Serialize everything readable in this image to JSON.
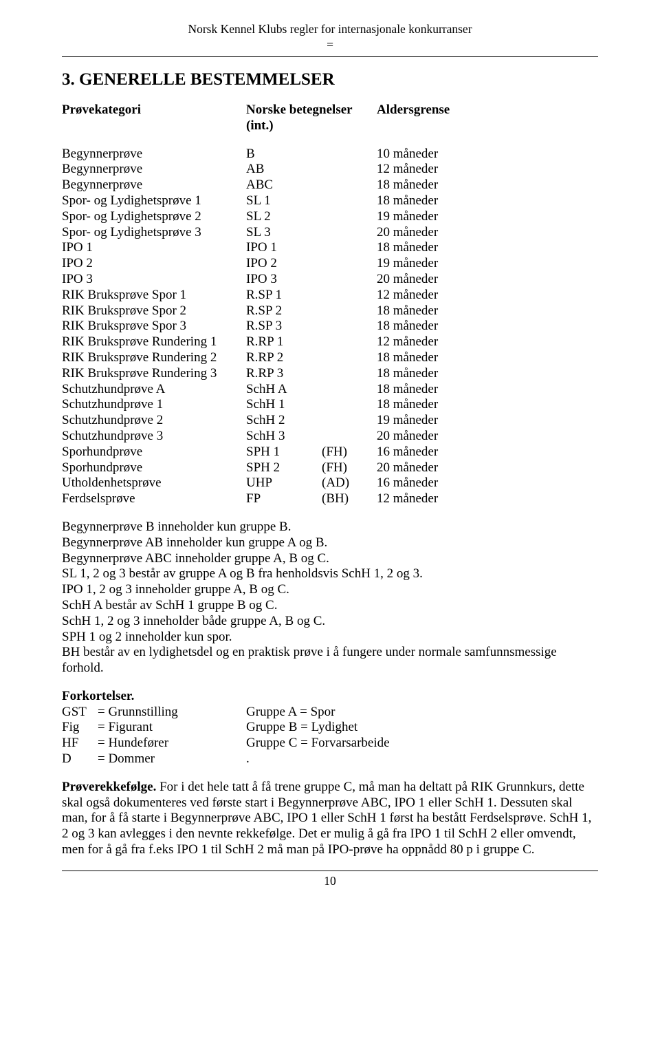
{
  "header": {
    "title": "Norsk Kennel Klubs regler for internasjonale konkurranser",
    "sub": "="
  },
  "section_heading": "3. GENERELLE BESTEMMELSER",
  "table": {
    "head": {
      "c1": "Prøvekategori",
      "c2": "Norske betegnelser (int.)",
      "c4": "Aldersgrense"
    },
    "rows": [
      {
        "c1": "Begynnerprøve",
        "c2": "B",
        "c3": "",
        "c4": "10 måneder"
      },
      {
        "c1": "Begynnerprøve",
        "c2": "AB",
        "c3": "",
        "c4": "12 måneder"
      },
      {
        "c1": "Begynnerprøve",
        "c2": "ABC",
        "c3": "",
        "c4": "18 måneder"
      },
      {
        "c1": "Spor- og Lydighetsprøve 1",
        "c2": "SL 1",
        "c3": "",
        "c4": "18 måneder"
      },
      {
        "c1": "Spor- og Lydighetsprøve 2",
        "c2": "SL 2",
        "c3": "",
        "c4": "19 måneder"
      },
      {
        "c1": "Spor- og Lydighetsprøve 3",
        "c2": "SL 3",
        "c3": "",
        "c4": "20 måneder"
      },
      {
        "c1": "IPO 1",
        "c2": "IPO 1",
        "c3": "",
        "c4": "18 måneder"
      },
      {
        "c1": "IPO 2",
        "c2": "IPO 2",
        "c3": "",
        "c4": "19 måneder"
      },
      {
        "c1": "IPO 3",
        "c2": "IPO 3",
        "c3": "",
        "c4": "20 måneder"
      },
      {
        "c1": "RIK Bruksprøve Spor 1",
        "c2": "R.SP 1",
        "c3": "",
        "c4": "12 måneder"
      },
      {
        "c1": "RIK Bruksprøve Spor 2",
        "c2": "R.SP 2",
        "c3": "",
        "c4": "18 måneder"
      },
      {
        "c1": "RIK Bruksprøve Spor 3",
        "c2": "R.SP 3",
        "c3": "",
        "c4": "18 måneder"
      },
      {
        "c1": "RIK Bruksprøve Rundering 1",
        "c2": "R.RP 1",
        "c3": "",
        "c4": "12 måneder"
      },
      {
        "c1": "RIK Bruksprøve Rundering 2",
        "c2": "R.RP 2",
        "c3": "",
        "c4": "18 måneder"
      },
      {
        "c1": "RIK Bruksprøve Rundering 3",
        "c2": "R.RP 3",
        "c3": "",
        "c4": "18 måneder"
      },
      {
        "c1": "Schutzhundprøve A",
        "c2": "SchH A",
        "c3": "",
        "c4": "18 måneder"
      },
      {
        "c1": "Schutzhundprøve 1",
        "c2": "SchH 1",
        "c3": "",
        "c4": "18 måneder"
      },
      {
        "c1": "Schutzhundprøve 2",
        "c2": "SchH 2",
        "c3": "",
        "c4": "19 måneder"
      },
      {
        "c1": "Schutzhundprøve 3",
        "c2": "SchH 3",
        "c3": "",
        "c4": "20 måneder"
      },
      {
        "c1": "Sporhundprøve",
        "c2": "SPH 1",
        "c3": "(FH)",
        "c4": "16 måneder"
      },
      {
        "c1": "Sporhundprøve",
        "c2": "SPH 2",
        "c3": "(FH)",
        "c4": "20 måneder"
      },
      {
        "c1": "Utholdenhetsprøve",
        "c2": "UHP",
        "c3": "(AD)",
        "c4": "16 måneder"
      },
      {
        "c1": "Ferdselsprøve",
        "c2": "FP",
        "c3": "(BH)",
        "c4": "12 måneder"
      }
    ]
  },
  "notes": [
    "Begynnerprøve B inneholder kun gruppe B.",
    "Begynnerprøve AB inneholder kun gruppe A og B.",
    "Begynnerprøve ABC inneholder gruppe A, B og C.",
    "SL 1, 2 og 3 består av gruppe A og B fra henholdsvis SchH 1, 2 og 3.",
    "IPO 1, 2 og 3 inneholder gruppe A, B og C.",
    "SchH A består av SchH 1 gruppe B og C.",
    "SchH 1, 2 og 3 inneholder både gruppe A, B og C.",
    "SPH 1 og 2 inneholder kun spor.",
    "BH består av en lydighetsdel og en praktisk prøve i å fungere under normale samfunnsmessige forhold."
  ],
  "abbrev": {
    "title": "Forkortelser.",
    "rows": [
      {
        "a1": "GST",
        "a2": "= Grunnstilling",
        "a3": "Gruppe A = Spor"
      },
      {
        "a1": "Fig",
        "a2": "= Figurant",
        "a3": "Gruppe B = Lydighet"
      },
      {
        "a1": "HF",
        "a2": "= Hundefører",
        "a3": "Gruppe C = Forvarsarbeide"
      },
      {
        "a1": "D",
        "a2": "= Dommer",
        "a3": "."
      }
    ]
  },
  "order": {
    "title": "Prøverekkefølge.",
    "text": " For i det hele tatt å få trene gruppe C, må man ha deltatt på RIK Grunnkurs, dette skal også dokumenteres ved første start i Begynnerprøve ABC, IPO 1 eller SchH 1. Dessuten skal man, for å få starte i Begynnerprøve ABC, IPO 1 eller SchH 1 først ha bestått Ferdselsprøve. SchH 1, 2 og 3 kan avlegges i den nevnte rekkefølge. Det er mulig å gå fra IPO 1 til SchH 2 eller omvendt, men for å gå fra f.eks IPO 1 til SchH 2 må man på IPO-prøve ha oppnådd 80 p i gruppe C."
  },
  "page_number": "10"
}
